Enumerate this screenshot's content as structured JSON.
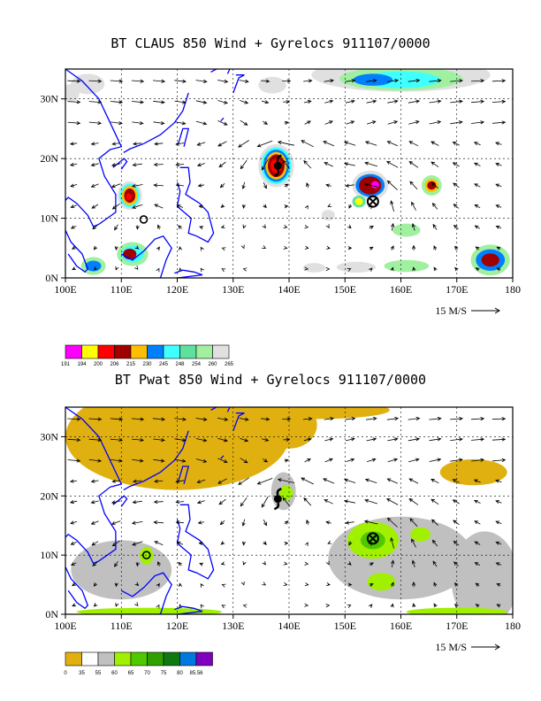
{
  "panels": [
    {
      "title": "BT CLAUS 850 Wind + Gyrelocs 911107/0000",
      "field": "claus",
      "legend_colors": [
        "#ff00ff",
        "#ffff00",
        "#ff0000",
        "#a00000",
        "#ffbf00",
        "#0080ff",
        "#40ffff",
        "#60e0a0",
        "#a0f0a0",
        "#e0e0e0"
      ],
      "legend_labels": [
        "191",
        "194",
        "200",
        "206",
        "215",
        "230",
        "245",
        "248",
        "254",
        "260",
        "265"
      ],
      "centers_storm": [
        [
          138,
          18.8
        ]
      ],
      "centers_cross": [
        [
          155,
          12.8
        ]
      ],
      "centers_ring": [
        [
          114,
          9.8
        ]
      ]
    },
    {
      "title": "BT Pwat 850 Wind + Gyrelocs 911107/0000",
      "field": "pwat",
      "legend_colors": [
        "#e0b010",
        "#ffffff",
        "#c0c0c0",
        "#a0f000",
        "#50c800",
        "#30a000",
        "#107810",
        "#0078e0",
        "#8000c0"
      ],
      "legend_labels": [
        "0",
        "35",
        "55",
        "60",
        "65",
        "70",
        "75",
        "80",
        "85.56"
      ],
      "centers_storm": [
        [
          138,
          19.5
        ]
      ],
      "centers_cross": [
        [
          155,
          12.8
        ]
      ],
      "centers_ring": [
        [
          114.5,
          10
        ]
      ]
    }
  ],
  "axes": {
    "lon_ticks": [
      "100E",
      "110E",
      "120E",
      "130E",
      "140E",
      "150E",
      "160E",
      "170E",
      "180"
    ],
    "lat_ticks": [
      "0N",
      "10N",
      "20N",
      "30N"
    ],
    "lon_range": [
      100,
      180
    ],
    "lat_range": [
      0,
      35
    ]
  },
  "wind_scale_label": "15 M/S",
  "colors": {
    "coast": "#0000ff",
    "grid": "#000000"
  }
}
